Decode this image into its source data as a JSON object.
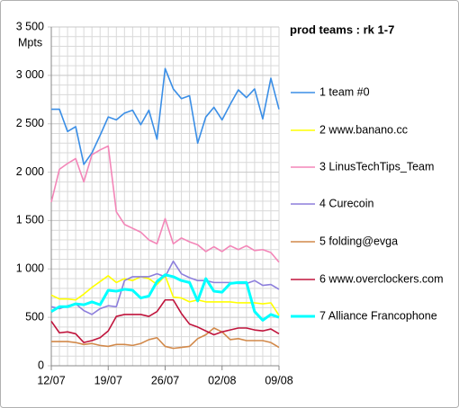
{
  "chart_data": {
    "type": "line",
    "title": "prod teams : rk 1-7",
    "y_label": "Mpts",
    "categories": [
      "12/07",
      null,
      null,
      null,
      null,
      null,
      null,
      "19/07",
      null,
      null,
      null,
      null,
      null,
      null,
      "26/07",
      null,
      null,
      null,
      null,
      null,
      null,
      "02/08",
      null,
      null,
      null,
      null,
      null,
      null,
      "09/08"
    ],
    "ylim": [
      0,
      3500
    ],
    "yticks": [
      0,
      500,
      {
        "value": 1000,
        "label": "1 000"
      },
      {
        "value": 1500,
        "label": "1 500"
      },
      {
        "value": 2000,
        "label": "2 000"
      },
      {
        "value": 2500,
        "label": "2 500"
      },
      {
        "value": 3000,
        "label": "3 000"
      },
      {
        "value": 3500,
        "label": "3 500"
      }
    ],
    "grid": true,
    "legend": "right",
    "series": [
      {
        "name": "1 team #0",
        "color": "#3a8ee6",
        "values": [
          2650,
          2650,
          2420,
          2470,
          2080,
          2200,
          2380,
          2570,
          2540,
          2610,
          2640,
          2490,
          2640,
          2340,
          3070,
          2860,
          2760,
          2790,
          2300,
          2570,
          2670,
          2540,
          2700,
          2850,
          2770,
          2860,
          2550,
          2970,
          2650
        ]
      },
      {
        "name": "2 www.banano.cc",
        "color": "#ffff00",
        "values": [
          730,
          690,
          690,
          680,
          740,
          810,
          870,
          930,
          860,
          900,
          880,
          920,
          900,
          840,
          930,
          710,
          700,
          660,
          680,
          660,
          660,
          660,
          660,
          650,
          650,
          650,
          640,
          650,
          520
        ]
      },
      {
        "name": "3 LinusTechTips_Team",
        "color": "#f386b8",
        "values": [
          1690,
          2030,
          2090,
          2140,
          1900,
          2180,
          2230,
          2270,
          1590,
          1460,
          1420,
          1380,
          1300,
          1260,
          1520,
          1260,
          1320,
          1280,
          1250,
          1180,
          1230,
          1180,
          1240,
          1200,
          1240,
          1190,
          1200,
          1170,
          1070
        ]
      },
      {
        "name": "4 Curecoin",
        "color": "#8d7fdc",
        "values": [
          610,
          590,
          620,
          640,
          570,
          530,
          590,
          620,
          610,
          880,
          920,
          920,
          920,
          950,
          920,
          1080,
          950,
          910,
          880,
          880,
          860,
          860,
          860,
          850,
          850,
          880,
          830,
          840,
          790
        ]
      },
      {
        "name": "5 folding@evga",
        "color": "#d2894a",
        "values": [
          250,
          250,
          250,
          240,
          220,
          230,
          210,
          200,
          220,
          220,
          210,
          230,
          270,
          290,
          200,
          180,
          190,
          200,
          280,
          320,
          390,
          350,
          270,
          280,
          260,
          260,
          260,
          240,
          190
        ]
      },
      {
        "name": "6 www.overclockers.com",
        "color": "#c0143c",
        "values": [
          460,
          340,
          350,
          330,
          240,
          260,
          290,
          360,
          510,
          530,
          530,
          530,
          510,
          560,
          680,
          680,
          540,
          430,
          400,
          360,
          320,
          350,
          370,
          390,
          390,
          370,
          360,
          380,
          330
        ]
      },
      {
        "name": "7 Alliance Francophone",
        "color": "#00ffff",
        "values": [
          560,
          610,
          610,
          640,
          630,
          660,
          630,
          780,
          770,
          790,
          780,
          700,
          720,
          870,
          940,
          920,
          880,
          860,
          670,
          900,
          770,
          760,
          850,
          860,
          860,
          560,
          470,
          530,
          500
        ]
      }
    ]
  }
}
